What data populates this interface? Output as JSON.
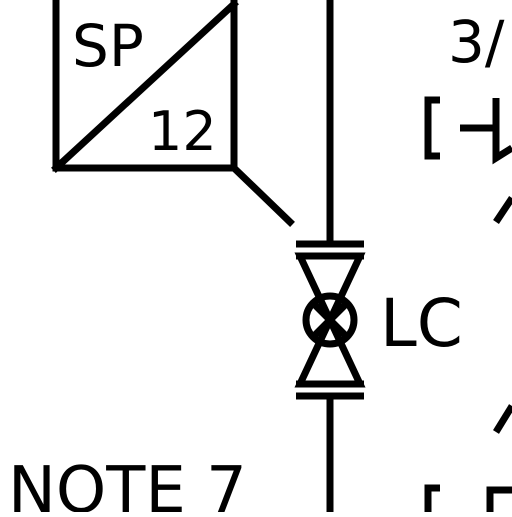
{
  "diagram": {
    "setpoint_box": {
      "prefix": "SP",
      "number": "12"
    },
    "valve_label": "LC",
    "top_right_label": "3/",
    "note_label": "NOTE 7"
  },
  "colors": {
    "ink": "#000000",
    "background": "#ffffff"
  }
}
